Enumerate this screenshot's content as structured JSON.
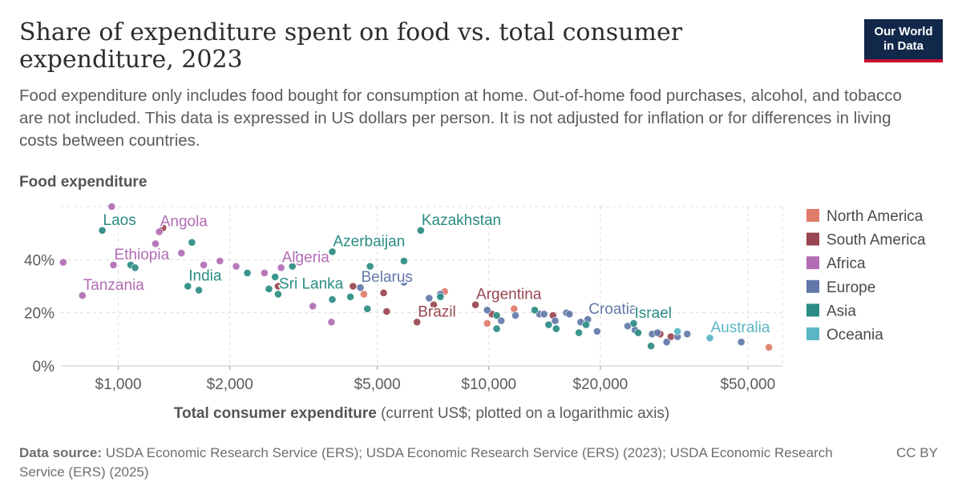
{
  "header": {
    "title": "Share of expenditure spent on food vs. total consumer expenditure, 2023",
    "subtitle": "Food expenditure only includes food bought for consumption at home. Out-of-home food purchases, alcohol, and tobacco are not included. This data is expressed in US dollars per person. It is not adjusted for inflation or for differences in living costs between countries.",
    "logo_line1": "Our World",
    "logo_line2": "in Data"
  },
  "footer": {
    "source_label": "Data source:",
    "source_text": "USDA Economic Research Service (ERS); USDA Economic Research Service (ERS) (2023); USDA Economic Research Service (ERS) (2025)",
    "license": "CC BY"
  },
  "chart_data": {
    "type": "scatter",
    "y_axis_title": "Food expenditure",
    "x_axis_title_bold": "Total consumer expenditure",
    "x_axis_title_rest": " (current US$; plotted on a logarithmic axis)",
    "x_scale": "log",
    "xlim": [
      700,
      62000
    ],
    "ylim": [
      0,
      60
    ],
    "x_ticks": [
      {
        "value": 1000,
        "label": "$1,000"
      },
      {
        "value": 2000,
        "label": "$2,000"
      },
      {
        "value": 5000,
        "label": "$5,000"
      },
      {
        "value": 10000,
        "label": "$10,000"
      },
      {
        "value": 20000,
        "label": "$20,000"
      },
      {
        "value": 50000,
        "label": "$50,000"
      }
    ],
    "y_ticks": [
      {
        "value": 0,
        "label": "0%"
      },
      {
        "value": 20,
        "label": "20%"
      },
      {
        "value": 40,
        "label": "40%"
      }
    ],
    "grid": true,
    "legend_position": "right",
    "series": [
      {
        "name": "North America",
        "color": "#e07b6a",
        "points": [
          [
            4600,
            27
          ],
          [
            7600,
            28
          ],
          [
            9900,
            16
          ],
          [
            11700,
            21.5
          ],
          [
            57000,
            7
          ]
        ]
      },
      {
        "name": "South America",
        "color": "#99454f",
        "points": [
          [
            1320,
            52
          ],
          [
            2700,
            30
          ],
          [
            4300,
            30
          ],
          [
            5200,
            27.5
          ],
          [
            5300,
            20.5
          ],
          [
            6400,
            16.5
          ],
          [
            7100,
            23
          ],
          [
            9200,
            23
          ],
          [
            10200,
            19.5
          ],
          [
            14900,
            19
          ],
          [
            29000,
            12
          ],
          [
            31000,
            11
          ]
        ]
      },
      {
        "name": "Africa",
        "color": "#b16cb3",
        "points": [
          [
            710,
            39
          ],
          [
            800,
            26.5
          ],
          [
            960,
            60
          ],
          [
            970,
            38
          ],
          [
            1260,
            46
          ],
          [
            1290,
            50.5
          ],
          [
            1480,
            42.5
          ],
          [
            1700,
            38
          ],
          [
            1880,
            39.5
          ],
          [
            2080,
            37.5
          ],
          [
            2480,
            35
          ],
          [
            2750,
            37
          ],
          [
            3350,
            22.5
          ],
          [
            3760,
            16.5
          ]
        ]
      },
      {
        "name": "Europe",
        "color": "#6278a8",
        "points": [
          [
            3000,
            42
          ],
          [
            4500,
            29.5
          ],
          [
            5900,
            31.5
          ],
          [
            6900,
            25.5
          ],
          [
            7400,
            27
          ],
          [
            9900,
            21
          ],
          [
            10800,
            17
          ],
          [
            11800,
            19
          ],
          [
            13700,
            19.5
          ],
          [
            14100,
            19.5
          ],
          [
            15100,
            17
          ],
          [
            16200,
            20
          ],
          [
            16500,
            19.5
          ],
          [
            17700,
            16.5
          ],
          [
            18500,
            17.5
          ],
          [
            19600,
            13
          ],
          [
            23700,
            15
          ],
          [
            24800,
            13.5
          ],
          [
            27600,
            12
          ],
          [
            28500,
            12.5
          ],
          [
            30200,
            9
          ],
          [
            32300,
            11
          ],
          [
            34300,
            12
          ],
          [
            48000,
            9
          ]
        ]
      },
      {
        "name": "Asia",
        "color": "#2a8c82",
        "points": [
          [
            905,
            51
          ],
          [
            1080,
            38
          ],
          [
            1110,
            37
          ],
          [
            1540,
            30
          ],
          [
            1580,
            46.5
          ],
          [
            1650,
            28.5
          ],
          [
            2230,
            35
          ],
          [
            2550,
            29
          ],
          [
            2650,
            33.5
          ],
          [
            2700,
            27
          ],
          [
            2950,
            37.5
          ],
          [
            3780,
            43
          ],
          [
            3780,
            25
          ],
          [
            4230,
            26
          ],
          [
            4700,
            21.5
          ],
          [
            4780,
            37.5
          ],
          [
            5900,
            39.5
          ],
          [
            6550,
            51
          ],
          [
            7400,
            26
          ],
          [
            10500,
            14
          ],
          [
            10500,
            19
          ],
          [
            13300,
            21
          ],
          [
            14500,
            15.5
          ],
          [
            15200,
            14
          ],
          [
            17500,
            12.5
          ],
          [
            18300,
            15.5
          ],
          [
            24600,
            16
          ],
          [
            25300,
            12.5
          ],
          [
            27400,
            7.5
          ]
        ]
      },
      {
        "name": "Oceania",
        "color": "#5ab6c5",
        "points": [
          [
            32300,
            13
          ],
          [
            39500,
            10.5
          ]
        ]
      }
    ],
    "annotations": [
      {
        "text": "Laos",
        "series": "Asia",
        "x": 905,
        "y": 51
      },
      {
        "text": "Angola",
        "series": "Africa",
        "x": 1290,
        "y": 50.5
      },
      {
        "text": "Kazakhstan",
        "series": "Asia",
        "x": 6550,
        "y": 51
      },
      {
        "text": "Azerbaijan",
        "series": "Asia",
        "x": 3780,
        "y": 43
      },
      {
        "text": "Ethiopia",
        "series": "Africa",
        "x": 970,
        "y": 38
      },
      {
        "text": "Algeria",
        "series": "Africa",
        "x": 2750,
        "y": 37
      },
      {
        "text": "India",
        "series": "Asia",
        "x": 1540,
        "y": 30
      },
      {
        "text": "Sri Lanka",
        "series": "Asia",
        "x": 2700,
        "y": 27
      },
      {
        "text": "Belarus",
        "series": "Europe",
        "x": 4500,
        "y": 29.5
      },
      {
        "text": "Tanzania",
        "series": "Africa",
        "x": 800,
        "y": 26.5
      },
      {
        "text": "Argentina",
        "series": "South America",
        "x": 9200,
        "y": 23
      },
      {
        "text": "Brazil",
        "series": "South America",
        "x": 6400,
        "y": 16.5
      },
      {
        "text": "Croatia",
        "series": "Europe",
        "x": 18500,
        "y": 17.5
      },
      {
        "text": "Israel",
        "series": "Asia",
        "x": 24600,
        "y": 16
      },
      {
        "text": "Australia",
        "series": "Oceania",
        "x": 39500,
        "y": 10.5
      }
    ]
  }
}
